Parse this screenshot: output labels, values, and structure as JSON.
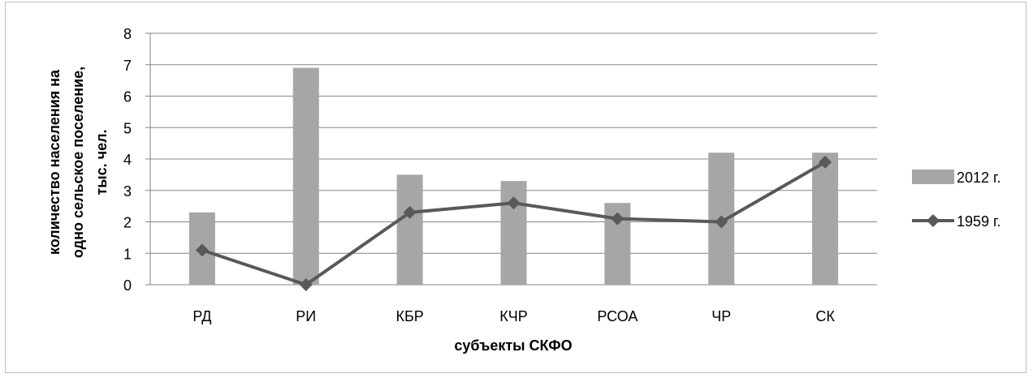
{
  "chart_data": {
    "type": "bar",
    "categories": [
      "РД",
      "РИ",
      "КБР",
      "КЧР",
      "РСОА",
      "ЧР",
      "СК"
    ],
    "series": [
      {
        "name": "2012 г.",
        "type": "bar",
        "color": "#a6a6a6",
        "values": [
          2.3,
          6.9,
          3.5,
          3.3,
          2.6,
          4.2,
          4.2
        ]
      },
      {
        "name": "1959 г.",
        "type": "line",
        "color": "#595959",
        "marker": "diamond",
        "values": [
          1.1,
          0.0,
          2.3,
          2.6,
          2.1,
          2.0,
          3.9
        ]
      }
    ],
    "xlabel": "субъекты СКФО",
    "ylabel_lines": [
      "количество населения на",
      "одно сельское поселение,",
      "тыс. чел."
    ],
    "ylim": [
      0,
      8
    ],
    "yticks": [
      "0",
      "1",
      "2",
      "3",
      "4",
      "5",
      "6",
      "7",
      "8"
    ],
    "grid": true,
    "legend_position": "right"
  }
}
